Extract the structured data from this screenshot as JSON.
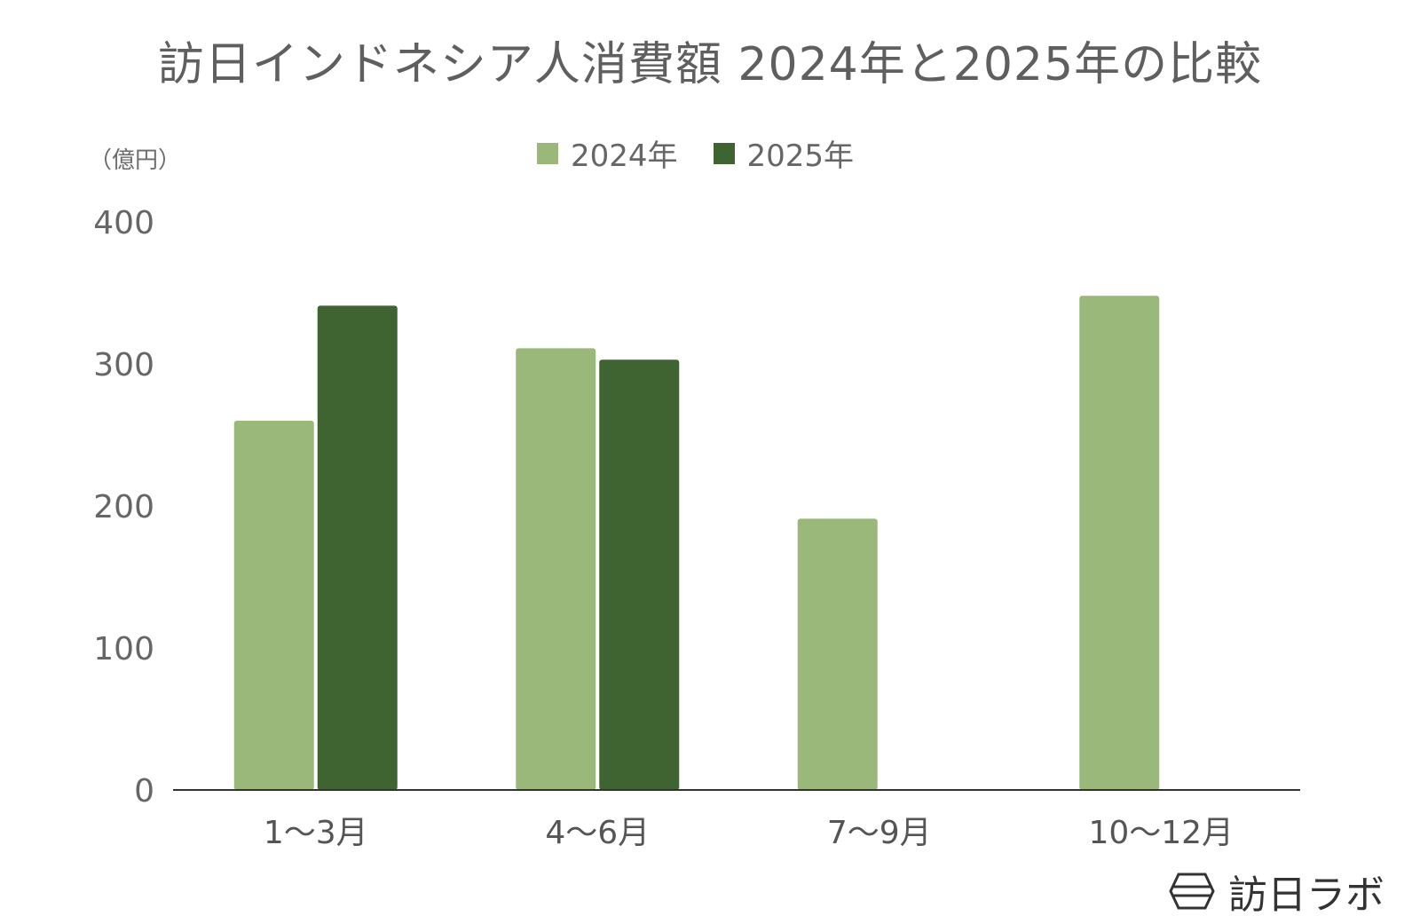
{
  "colors": {
    "series_2024": "#9bb87b",
    "series_2025": "#3f6432",
    "axis": "#333333",
    "text": "#666666",
    "title": "#5f5f5f"
  },
  "chart_data": {
    "type": "bar",
    "title": "訪日インドネシア人消費額 2024年と2025年の比較",
    "unit_label": "（億円）",
    "categories": [
      "1〜3月",
      "4〜6月",
      "7〜9月",
      "10〜12月"
    ],
    "series": [
      {
        "name": "2024年",
        "values": [
          260,
          311,
          191,
          348
        ]
      },
      {
        "name": "2025年",
        "values": [
          341,
          303,
          null,
          null
        ]
      }
    ],
    "yticks": [
      "0",
      "100",
      "200",
      "300",
      "400"
    ],
    "ylim": [
      0,
      400
    ],
    "grid": false,
    "legend_position": "top-center"
  },
  "watermark": {
    "text": "訪日ラボ",
    "icon": "hexagon-logo-icon"
  }
}
